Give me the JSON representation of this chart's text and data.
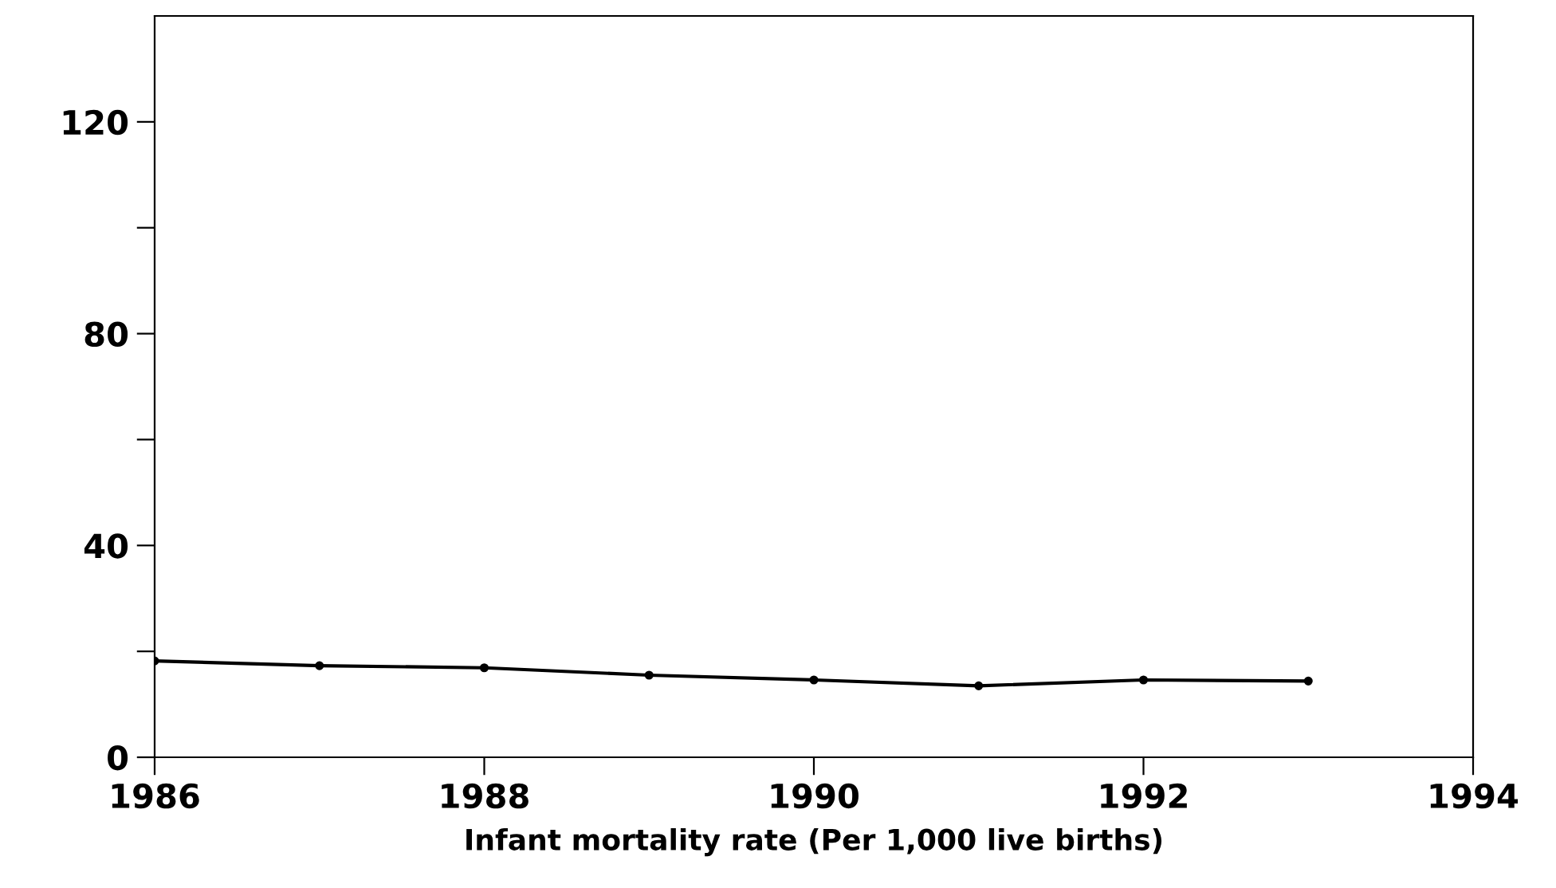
{
  "chart_data": {
    "type": "line",
    "xlabel": "Infant mortality rate (Per 1,000 live births)",
    "x": [
      1986,
      1987,
      1988,
      1989,
      1990,
      1991,
      1992,
      1993
    ],
    "series": [
      {
        "color": "#000000",
        "values": [
          18.2,
          17.3,
          16.9,
          15.5,
          14.6,
          13.5,
          14.6,
          14.4
        ]
      }
    ],
    "xlim": [
      1986,
      1994
    ],
    "xticks": [
      1986,
      1988,
      1990,
      1992,
      1994
    ],
    "ylim": [
      0,
      140
    ],
    "yticks": [
      0,
      {
        "value": 20,
        "label": null
      },
      40,
      {
        "value": 60,
        "label": null
      },
      80,
      {
        "value": 100,
        "label": null
      },
      120
    ],
    "marker": "circle",
    "line_style": "solid",
    "grid": false,
    "legend": false
  }
}
